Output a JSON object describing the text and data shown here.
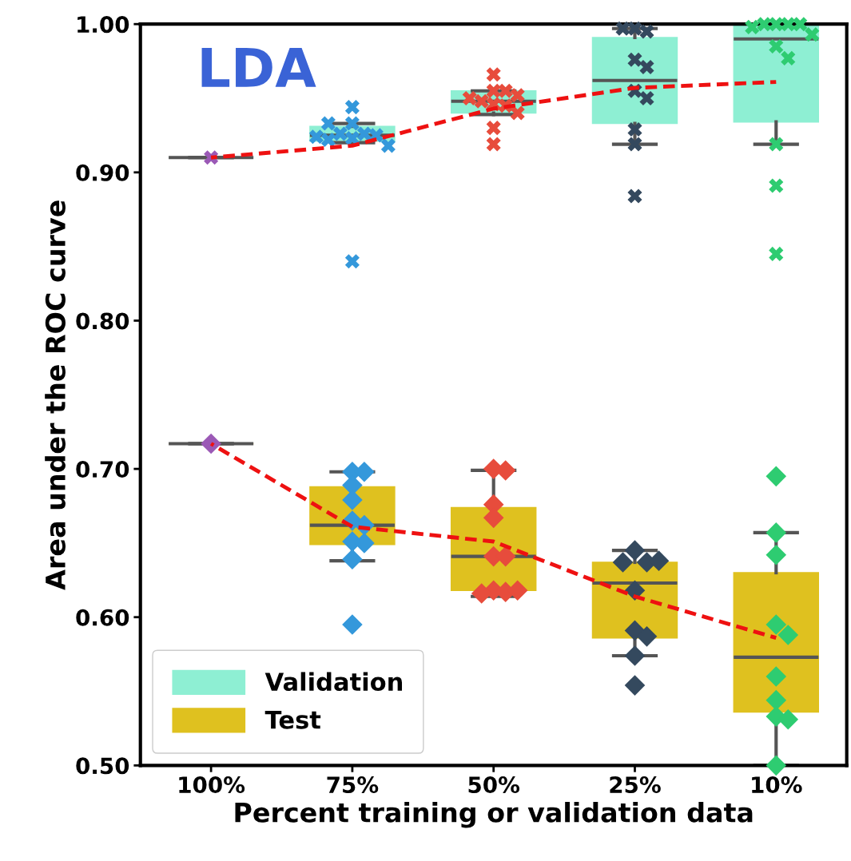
{
  "chart_data": {
    "type": "box",
    "title": "LDA",
    "xlabel": "Percent training or validation data",
    "ylabel": "Area under the ROC curve",
    "categories": [
      "100%",
      "75%",
      "50%",
      "25%",
      "10%"
    ],
    "ylim": [
      0.5,
      1.0
    ],
    "yticks": [
      {
        "value": 0.5,
        "label": "0.50"
      },
      {
        "value": 0.6,
        "label": "0.60"
      },
      {
        "value": 0.7,
        "label": "0.70"
      },
      {
        "value": 0.8,
        "label": "0.80"
      },
      {
        "value": 0.9,
        "label": "0.90"
      },
      {
        "value": 1.0,
        "label": "1.00"
      }
    ],
    "grid": false,
    "legend": "bottom left",
    "series": [
      {
        "name": "Validation",
        "color": "#8eefd3",
        "boxes": [
          {
            "low": 0.91,
            "q1": 0.91,
            "median": 0.91,
            "q3": 0.91,
            "high": 0.91
          },
          {
            "low": 0.92,
            "q1": 0.921,
            "median": 0.925,
            "q3": 0.931,
            "high": 0.933
          },
          {
            "low": 0.939,
            "q1": 0.94,
            "median": 0.948,
            "q3": 0.955,
            "high": 0.955
          },
          {
            "low": 0.919,
            "q1": 0.933,
            "median": 0.962,
            "q3": 0.991,
            "high": 0.997
          },
          {
            "low": 0.919,
            "q1": 0.934,
            "median": 0.99,
            "q3": 1.0,
            "high": 1.0
          }
        ]
      },
      {
        "name": "Test",
        "color": "#dfc11f",
        "boxes": [
          {
            "low": 0.717,
            "q1": 0.717,
            "median": 0.717,
            "q3": 0.717,
            "high": 0.717
          },
          {
            "low": 0.638,
            "q1": 0.649,
            "median": 0.662,
            "q3": 0.688,
            "high": 0.698
          },
          {
            "low": 0.614,
            "q1": 0.618,
            "median": 0.641,
            "q3": 0.674,
            "high": 0.699
          },
          {
            "low": 0.574,
            "q1": 0.586,
            "median": 0.623,
            "q3": 0.637,
            "high": 0.645
          },
          {
            "low": 0.5,
            "q1": 0.536,
            "median": 0.573,
            "q3": 0.63,
            "high": 0.657
          }
        ]
      },
      {
        "type": "scatter",
        "marker": "cross",
        "x": [
          "100%",
          "75%",
          "75%",
          "75%",
          "75%",
          "75%",
          "75%",
          "75%",
          "75%",
          "75%",
          "75%",
          "75%",
          "50%",
          "50%",
          "50%",
          "50%",
          "50%",
          "50%",
          "50%",
          "50%",
          "50%",
          "50%",
          "50%",
          "25%",
          "25%",
          "25%",
          "25%",
          "25%",
          "25%",
          "25%",
          "25%",
          "25%",
          "25%",
          "10%",
          "10%",
          "10%",
          "10%",
          "10%",
          "10%",
          "10%",
          "10%",
          "10%",
          "10%",
          "10%"
        ],
        "values": [
          0.91,
          0.944,
          0.933,
          0.926,
          0.926,
          0.925,
          0.923,
          0.922,
          0.918,
          0.924,
          0.933,
          0.84,
          0.955,
          0.955,
          0.966,
          0.946,
          0.945,
          0.948,
          0.952,
          0.95,
          0.94,
          0.93,
          0.919,
          0.997,
          0.995,
          0.997,
          0.976,
          0.971,
          0.955,
          0.95,
          0.929,
          0.919,
          0.884,
          1.0,
          1.0,
          1.0,
          1.0,
          0.998,
          0.993,
          0.985,
          0.977,
          0.919,
          0.891,
          0.845
        ],
        "colors": [
          "#9b59b6",
          "#3498db",
          "#3498db",
          "#3498db",
          "#3498db",
          "#3498db",
          "#3498db",
          "#3498db",
          "#3498db",
          "#3498db",
          "#3498db",
          "#3498db",
          "#e74c3c",
          "#e74c3c",
          "#e74c3c",
          "#e74c3c",
          "#e74c3c",
          "#e74c3c",
          "#e74c3c",
          "#e74c3c",
          "#e74c3c",
          "#e74c3c",
          "#e74c3c",
          "#34495e",
          "#34495e",
          "#34495e",
          "#34495e",
          "#34495e",
          "#34495e",
          "#34495e",
          "#34495e",
          "#34495e",
          "#34495e",
          "#2ecc71",
          "#2ecc71",
          "#2ecc71",
          "#2ecc71",
          "#2ecc71",
          "#2ecc71",
          "#2ecc71",
          "#2ecc71",
          "#2ecc71",
          "#2ecc71",
          "#2ecc71"
        ]
      },
      {
        "type": "scatter",
        "marker": "diamond",
        "x": [
          "100%",
          "75%",
          "75%",
          "75%",
          "75%",
          "75%",
          "75%",
          "75%",
          "75%",
          "75%",
          "75%",
          "50%",
          "50%",
          "50%",
          "50%",
          "50%",
          "50%",
          "50%",
          "50%",
          "50%",
          "50%",
          "25%",
          "25%",
          "25%",
          "25%",
          "25%",
          "25%",
          "25%",
          "25%",
          "25%",
          "10%",
          "10%",
          "10%",
          "10%",
          "10%",
          "10%",
          "10%",
          "10%",
          "10%",
          "10%"
        ],
        "values": [
          0.717,
          0.698,
          0.698,
          0.689,
          0.679,
          0.665,
          0.662,
          0.651,
          0.65,
          0.639,
          0.595,
          0.7,
          0.699,
          0.676,
          0.667,
          0.641,
          0.641,
          0.618,
          0.617,
          0.616,
          0.618,
          0.645,
          0.637,
          0.637,
          0.638,
          0.618,
          0.591,
          0.587,
          0.574,
          0.554,
          0.695,
          0.657,
          0.642,
          0.595,
          0.588,
          0.56,
          0.544,
          0.533,
          0.531,
          0.5
        ],
        "colors": [
          "#9b59b6",
          "#3498db",
          "#3498db",
          "#3498db",
          "#3498db",
          "#3498db",
          "#3498db",
          "#3498db",
          "#3498db",
          "#3498db",
          "#3498db",
          "#e74c3c",
          "#e74c3c",
          "#e74c3c",
          "#e74c3c",
          "#e74c3c",
          "#e74c3c",
          "#e74c3c",
          "#e74c3c",
          "#e74c3c",
          "#e74c3c",
          "#34495e",
          "#34495e",
          "#34495e",
          "#34495e",
          "#34495e",
          "#34495e",
          "#34495e",
          "#34495e",
          "#34495e",
          "#2ecc71",
          "#2ecc71",
          "#2ecc71",
          "#2ecc71",
          "#2ecc71",
          "#2ecc71",
          "#2ecc71",
          "#2ecc71",
          "#2ecc71",
          "#2ecc71"
        ]
      },
      {
        "type": "line",
        "color": "#ee1111",
        "line_style": "dashed",
        "values": [
          0.91,
          0.918,
          0.943,
          0.957,
          0.961
        ]
      },
      {
        "type": "line",
        "color": "#ee1111",
        "line_style": "dashed",
        "values": [
          0.717,
          0.661,
          0.651,
          0.614,
          0.586
        ]
      }
    ]
  }
}
